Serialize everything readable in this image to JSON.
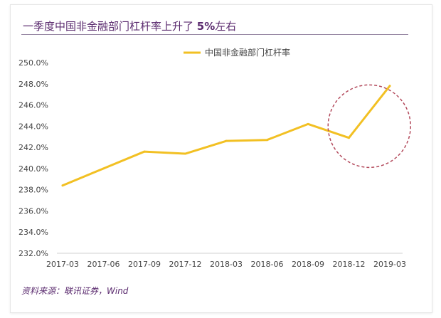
{
  "chart_data": {
    "type": "line",
    "title_prefix": "一季度中国非金融部门杠杆率上升了 ",
    "title_emphasis": "5%",
    "title_suffix": "左右",
    "source": "资料来源：联讯证券，Wind",
    "categories": [
      "2017-03",
      "2017-06",
      "2017-09",
      "2017-12",
      "2018-03",
      "2018-06",
      "2018-09",
      "2018-12",
      "2019-03"
    ],
    "series": [
      {
        "name": "中国非金融部门杠杆率",
        "color": "#f2c023",
        "values": [
          238.4,
          240.0,
          241.6,
          241.4,
          242.6,
          242.7,
          244.2,
          242.9,
          247.8
        ]
      }
    ],
    "ylim": [
      232.0,
      250.0
    ],
    "yticks": [
      "250.0%",
      "248.0%",
      "246.0%",
      "244.0%",
      "242.0%",
      "240.0%",
      "238.0%",
      "236.0%",
      "234.0%",
      "232.0%"
    ],
    "ytick_values": [
      250,
      248,
      246,
      244,
      242,
      240,
      238,
      236,
      234,
      232
    ],
    "legend_position": "top",
    "grid": false,
    "annotation": {
      "type": "dashed-circle",
      "color": "#b34a5c",
      "center_category_index": 7.5,
      "center_y_value": 244.0
    }
  }
}
